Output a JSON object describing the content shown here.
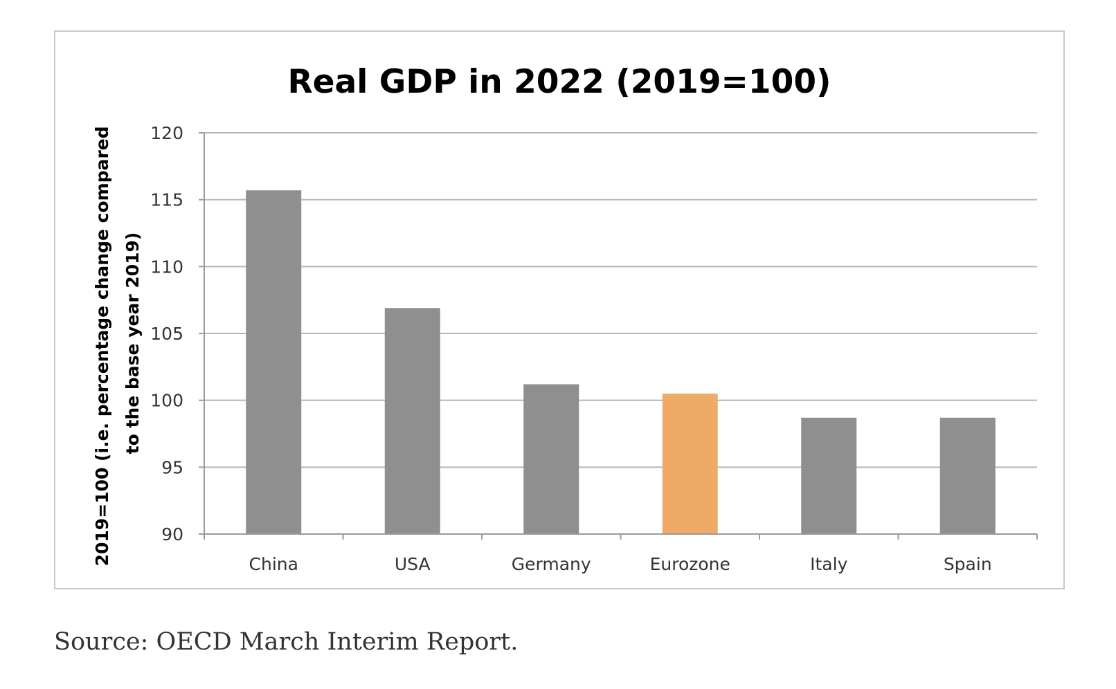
{
  "chart_data": {
    "type": "bar",
    "title": "Real GDP in 2022 (2019=100)",
    "ylabel": "2019=100 (i.e. percentage change compared to the base year 2019)",
    "ylabel_lines": [
      "2019=100 (i.e. percentage change compared",
      "to the base year 2019)"
    ],
    "xlabel": "",
    "categories": [
      "China",
      "USA",
      "Germany",
      "Eurozone",
      "Italy",
      "Spain"
    ],
    "values": [
      115.7,
      106.9,
      101.2,
      100.5,
      98.7,
      98.7
    ],
    "ylim": [
      90,
      120
    ],
    "yticks": [
      90,
      95,
      100,
      105,
      110,
      115,
      120
    ],
    "grid": true,
    "legend": "none",
    "bar_colors": [
      "#8f8f8f",
      "#8f8f8f",
      "#8f8f8f",
      "#eeaa66",
      "#8f8f8f",
      "#8f8f8f"
    ]
  },
  "source": "Source: OECD March Interim Report."
}
